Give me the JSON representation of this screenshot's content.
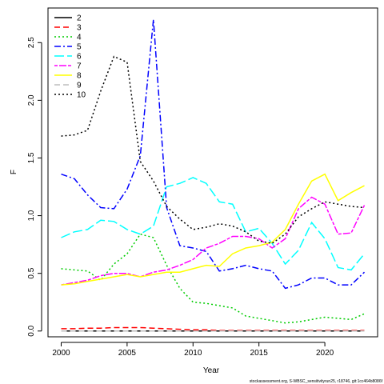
{
  "chart_data": {
    "type": "line",
    "xlabel": "Year",
    "ylabel": "F",
    "xlim": [
      1999,
      2024
    ],
    "ylim": [
      -0.05,
      2.8
    ],
    "xticks": [
      2000,
      2005,
      2010,
      2015,
      2020
    ],
    "yticks": [
      0.0,
      0.5,
      1.0,
      1.5,
      2.0,
      2.5
    ],
    "ytick_labels": [
      "0.0",
      "0.5",
      "1.0",
      "1.5",
      "2.0",
      "2.5"
    ],
    "grid": false,
    "legend_position": "top-left",
    "x": [
      2000,
      2001,
      2002,
      2003,
      2004,
      2005,
      2006,
      2007,
      2008,
      2009,
      2010,
      2011,
      2012,
      2013,
      2014,
      2015,
      2016,
      2017,
      2018,
      2019,
      2020,
      2021,
      2022,
      2023
    ],
    "series": [
      {
        "name": "2",
        "color": "#000000",
        "dash": "solid",
        "values": [
          0.0,
          0.0,
          0.0,
          0.0,
          0.0,
          0.0,
          0.0,
          0.0,
          0.0,
          0.0,
          0.0,
          0.0,
          0.0,
          0.0,
          0.0,
          0.0,
          0.0,
          0.0,
          0.0,
          0.0,
          0.0,
          0.0,
          0.0,
          0.0
        ]
      },
      {
        "name": "3",
        "color": "#ff0000",
        "dash": "dashed",
        "values": [
          0.02,
          0.02,
          0.025,
          0.025,
          0.03,
          0.03,
          0.03,
          0.025,
          0.02,
          0.015,
          0.01,
          0.01,
          0.005,
          0.005,
          0.005,
          0.005,
          0.005,
          0.005,
          0.005,
          0.005,
          0.005,
          0.005,
          0.005,
          0.005
        ]
      },
      {
        "name": "4",
        "color": "#00cc00",
        "dash": "dotted",
        "values": [
          0.54,
          0.53,
          0.52,
          0.44,
          0.58,
          0.67,
          0.84,
          0.81,
          0.57,
          0.37,
          0.25,
          0.24,
          0.22,
          0.2,
          0.13,
          0.11,
          0.09,
          0.07,
          0.08,
          0.1,
          0.12,
          0.11,
          0.1,
          0.15
        ]
      },
      {
        "name": "5",
        "color": "#0000ff",
        "dash": "dashdot",
        "values": [
          1.36,
          1.32,
          1.18,
          1.07,
          1.06,
          1.23,
          1.52,
          2.7,
          1.07,
          0.74,
          0.72,
          0.69,
          0.52,
          0.54,
          0.57,
          0.54,
          0.52,
          0.37,
          0.4,
          0.46,
          0.46,
          0.4,
          0.4,
          0.51
        ]
      },
      {
        "name": "6",
        "color": "#00ffff",
        "dash": "longdash",
        "values": [
          0.81,
          0.86,
          0.88,
          0.96,
          0.95,
          0.88,
          0.84,
          0.91,
          1.25,
          1.28,
          1.33,
          1.28,
          1.12,
          1.1,
          0.86,
          0.89,
          0.76,
          0.58,
          0.7,
          0.94,
          0.8,
          0.55,
          0.53,
          0.67
        ]
      },
      {
        "name": "7",
        "color": "#ff00ff",
        "dash": "twodash",
        "values": [
          0.4,
          0.42,
          0.44,
          0.48,
          0.5,
          0.5,
          0.47,
          0.51,
          0.53,
          0.57,
          0.62,
          0.72,
          0.76,
          0.82,
          0.82,
          0.8,
          0.72,
          0.8,
          1.06,
          1.16,
          1.1,
          0.84,
          0.85,
          1.09
        ]
      },
      {
        "name": "8",
        "color": "#ffff00",
        "dash": "solid",
        "values": [
          0.4,
          0.41,
          0.43,
          0.45,
          0.47,
          0.49,
          0.47,
          0.49,
          0.51,
          0.51,
          0.54,
          0.57,
          0.56,
          0.67,
          0.72,
          0.74,
          0.77,
          0.88,
          1.1,
          1.3,
          1.36,
          1.13,
          1.2,
          1.26
        ]
      },
      {
        "name": "9",
        "color": "#bebebe",
        "dash": "dashed",
        "values": [
          0.0,
          0.0,
          0.0,
          0.0,
          0.0,
          0.0,
          0.0,
          0.0,
          0.0,
          0.0,
          0.0,
          0.0,
          0.0,
          0.0,
          0.0,
          0.0,
          0.0,
          0.0,
          0.0,
          0.0,
          0.0,
          0.0,
          0.0,
          0.0
        ]
      },
      {
        "name": "10",
        "color": "#000000",
        "dash": "dotted",
        "values": [
          1.69,
          1.7,
          1.74,
          2.08,
          2.38,
          2.33,
          1.47,
          1.3,
          1.08,
          0.97,
          0.88,
          0.9,
          0.93,
          0.91,
          0.86,
          0.78,
          0.76,
          0.84,
          0.99,
          1.06,
          1.12,
          1.1,
          1.08,
          1.07
        ]
      }
    ]
  },
  "footer_text": "stockassessment.org, S-WBSC_sensitivityrun25, r18746, git:1cc464b8086f"
}
